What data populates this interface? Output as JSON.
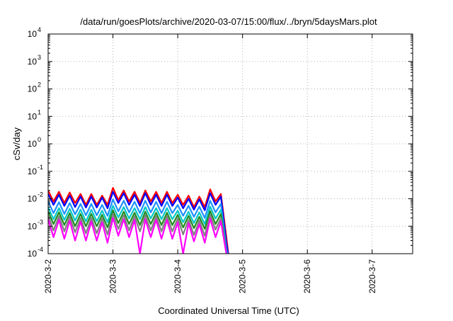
{
  "chart_data": {
    "type": "line",
    "title": "/data/run/goesPlots/archive/2020-03-07/15:00/flux/../bryn/5daysMars.plot",
    "xlabel": "Coordinated Universal Time (UTC)",
    "ylabel": "cSv/day",
    "yscale": "log",
    "ylim": [
      0.0001,
      10000
    ],
    "xlim": [
      "2020-03-02",
      "2020-03-07 15:00"
    ],
    "grid": true,
    "x_ticks": [
      "2020-3-2",
      "2020-3-3",
      "2020-3-4",
      "2020-3-5",
      "2020-3-6",
      "2020-3-7"
    ],
    "y_ticks": [
      {
        "base": "10",
        "exp": "4",
        "value": 10000
      },
      {
        "base": "10",
        "exp": "3",
        "value": 1000
      },
      {
        "base": "10",
        "exp": "2",
        "value": 100
      },
      {
        "base": "10",
        "exp": "1",
        "value": 10
      },
      {
        "base": "10",
        "exp": "0",
        "value": 1
      },
      {
        "base": "10",
        "exp": "-1",
        "value": 0.1
      },
      {
        "base": "10",
        "exp": "-2",
        "value": 0.01
      },
      {
        "base": "10",
        "exp": "-3",
        "value": 0.001
      },
      {
        "base": "10",
        "exp": "-4",
        "value": 0.0001
      }
    ],
    "x": [
      "2020-03-02 00:00",
      "2020-03-02 02:00",
      "2020-03-02 04:00",
      "2020-03-02 06:00",
      "2020-03-02 08:00",
      "2020-03-02 10:00",
      "2020-03-02 12:00",
      "2020-03-02 14:00",
      "2020-03-02 16:00",
      "2020-03-02 18:00",
      "2020-03-02 20:00",
      "2020-03-02 22:00",
      "2020-03-03 00:00",
      "2020-03-03 02:00",
      "2020-03-03 04:00",
      "2020-03-03 06:00",
      "2020-03-03 08:00",
      "2020-03-03 10:00",
      "2020-03-03 12:00",
      "2020-03-03 14:00",
      "2020-03-03 16:00",
      "2020-03-03 18:00",
      "2020-03-03 20:00",
      "2020-03-03 22:00",
      "2020-03-04 00:00",
      "2020-03-04 02:00",
      "2020-03-04 04:00",
      "2020-03-04 06:00",
      "2020-03-04 08:00",
      "2020-03-04 10:00",
      "2020-03-04 12:00",
      "2020-03-04 14:00",
      "2020-03-04 16:00",
      "2020-03-04 18:00"
    ],
    "series": [
      {
        "color": "#ff0000",
        "values": [
          0.02,
          0.008,
          0.018,
          0.007,
          0.017,
          0.007,
          0.015,
          0.006,
          0.015,
          0.006,
          0.013,
          0.006,
          0.025,
          0.009,
          0.02,
          0.008,
          0.018,
          0.007,
          0.02,
          0.008,
          0.018,
          0.007,
          0.018,
          0.007,
          0.014,
          0.006,
          0.013,
          0.005,
          0.012,
          0.005,
          0.022,
          0.008,
          0.015,
          0.0004
        ]
      },
      {
        "color": "#0000ff",
        "values": [
          0.015,
          0.006,
          0.014,
          0.0055,
          0.013,
          0.005,
          0.012,
          0.0048,
          0.012,
          0.0048,
          0.011,
          0.0045,
          0.018,
          0.007,
          0.016,
          0.006,
          0.014,
          0.0055,
          0.016,
          0.006,
          0.014,
          0.0055,
          0.014,
          0.0055,
          0.011,
          0.0045,
          0.01,
          0.004,
          0.0095,
          0.0038,
          0.016,
          0.006,
          0.012,
          0.00025
        ]
      },
      {
        "color": "#1e90ff",
        "values": [
          0.008,
          0.003,
          0.0075,
          0.0028,
          0.007,
          0.0027,
          0.0065,
          0.0025,
          0.0065,
          0.0025,
          0.006,
          0.0024,
          0.0095,
          0.0035,
          0.0085,
          0.0032,
          0.0078,
          0.003,
          0.0085,
          0.0032,
          0.0078,
          0.003,
          0.0078,
          0.003,
          0.006,
          0.0024,
          0.0056,
          0.0022,
          0.0052,
          0.002,
          0.0085,
          0.0032,
          0.0065,
          0.00015
        ]
      },
      {
        "color": "#00c8c8",
        "values": [
          0.005,
          0.0018,
          0.0046,
          0.0017,
          0.0043,
          0.0016,
          0.004,
          0.0015,
          0.004,
          0.0015,
          0.0037,
          0.0014,
          0.0056,
          0.0021,
          0.005,
          0.0019,
          0.0046,
          0.0018,
          0.005,
          0.0019,
          0.0046,
          0.0018,
          0.0046,
          0.0018,
          0.0037,
          0.0014,
          0.0034,
          0.0013,
          0.0032,
          0.0012,
          0.0052,
          0.0019,
          0.004,
          0.00012
        ]
      },
      {
        "color": "#228b22",
        "values": [
          0.0035,
          0.0012,
          0.0032,
          0.0011,
          0.003,
          0.001,
          0.0028,
          0.001,
          0.0028,
          0.001,
          0.0026,
          0.0009,
          0.0038,
          0.0013,
          0.0034,
          0.0012,
          0.0031,
          0.0011,
          0.0034,
          0.0012,
          0.0031,
          0.0011,
          0.0031,
          0.0011,
          0.0026,
          0.0009,
          0.0024,
          0.00085,
          0.0022,
          0.0008,
          0.0036,
          0.0012,
          0.0028,
          0.0001
        ]
      },
      {
        "color": "#808080",
        "values": [
          0.0025,
          0.0007,
          0.0023,
          0.00065,
          0.0022,
          0.0006,
          0.002,
          0.00055,
          0.002,
          0.00055,
          0.0019,
          0.0005,
          0.0028,
          0.0008,
          0.0025,
          0.0007,
          0.0023,
          0.00065,
          0.0025,
          0.0007,
          0.0023,
          0.00065,
          0.0023,
          0.00065,
          0.0019,
          0.0005,
          0.0017,
          0.00048,
          0.0016,
          0.00045,
          0.0026,
          0.00075,
          0.002,
          0.0001
        ]
      },
      {
        "color": "#ff00ff",
        "values": [
          0.0018,
          0.0004,
          0.0017,
          0.00035,
          0.0016,
          0.0003,
          0.0015,
          0.0003,
          0.0015,
          0.0003,
          0.0014,
          0.00025,
          0.002,
          0.00045,
          0.0018,
          0.0004,
          0.0017,
          0.0001,
          0.0018,
          0.0004,
          0.0017,
          0.00035,
          0.0017,
          0.00035,
          0.0014,
          0.0001,
          0.0013,
          0.00028,
          0.0012,
          0.00025,
          0.0019,
          0.0004,
          0.0015,
          0.0001
        ]
      }
    ]
  }
}
